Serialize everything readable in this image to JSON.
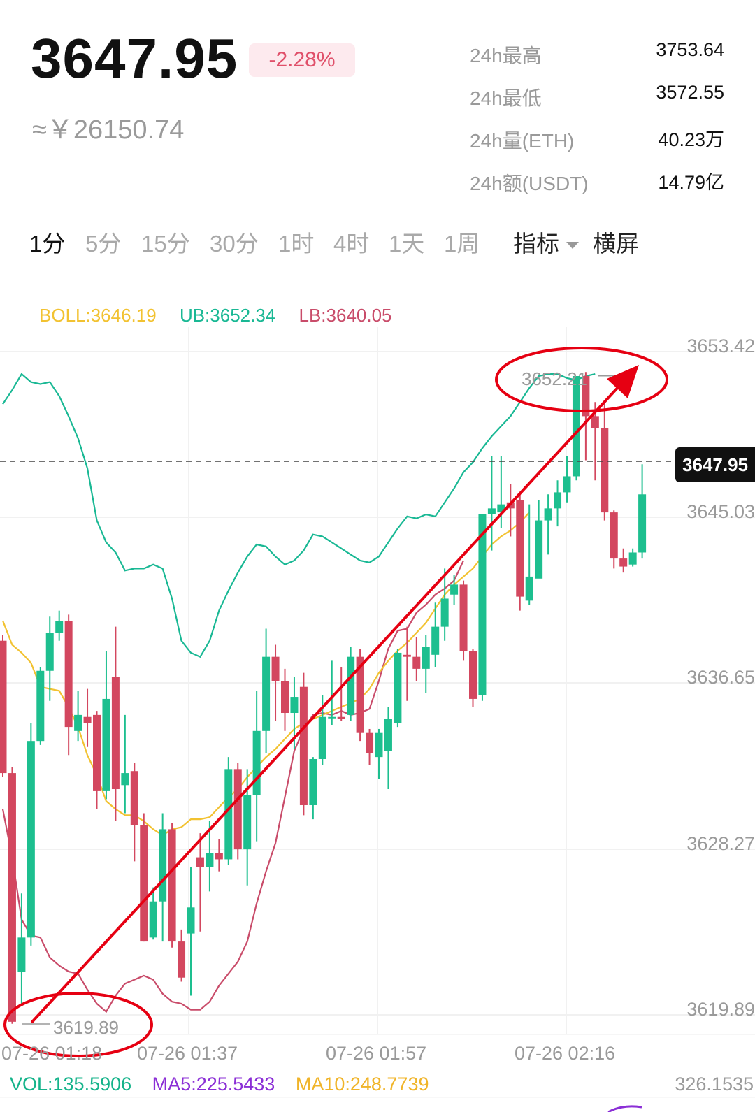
{
  "ticker": {
    "price": "3647.95",
    "change": "-2.28%",
    "cny": "≈￥26150.74"
  },
  "stats": [
    {
      "label": "24h最高",
      "value": "3753.64"
    },
    {
      "label": "24h最低",
      "value": "3572.55"
    },
    {
      "label": "24h量(ETH)",
      "value": "40.23万"
    },
    {
      "label": "24h额(USDT)",
      "value": "14.79亿"
    }
  ],
  "tabs": {
    "intervals": [
      "1分",
      "5分",
      "15分",
      "30分",
      "1时",
      "4时",
      "1天",
      "1周"
    ],
    "active": "1分",
    "indicator": "指标",
    "landscape": "横屏"
  },
  "boll": {
    "boll": "BOLL:3646.19",
    "ub": "UB:3652.34",
    "lb": "LB:3640.05"
  },
  "colors": {
    "up": "#1dbf8f",
    "down": "#d3475f",
    "ub": "#19b894",
    "mid": "#f2c231",
    "lb": "#c94c6a",
    "annotation": "#e60012",
    "vol": "#14b38a",
    "ma5": "#8b2fd6",
    "ma10": "#f0b429"
  },
  "chart_data": {
    "type": "candlestick",
    "title": "",
    "y_axis_labels": [
      "3653.42",
      "3645.03",
      "3636.65",
      "3628.27",
      "3619.89"
    ],
    "ylim": [
      3619.89,
      3653.42
    ],
    "x_axis_labels": [
      "07-26 01:18",
      "07-26 01:37",
      "07-26 01:57",
      "07-26 02:16"
    ],
    "current_price": "3647.95",
    "high_marker": "3652.21",
    "low_marker": "3619.89",
    "candles": [
      [
        3639.0,
        3632.4,
        3639.3,
        3632.2
      ],
      [
        3632.4,
        3620.0,
        3632.7,
        3619.9
      ],
      [
        3622.5,
        3624.2,
        3626.4,
        3620.9
      ],
      [
        3624.2,
        3634.0,
        3634.9,
        3623.8
      ],
      [
        3634.0,
        3637.5,
        3637.7,
        3633.8
      ],
      [
        3637.5,
        3639.4,
        3640.2,
        3636.0
      ],
      [
        3639.4,
        3640.0,
        3640.5,
        3639.0
      ],
      [
        3640.0,
        3634.7,
        3640.3,
        3633.3
      ],
      [
        3634.5,
        3635.3,
        3636.5,
        3634.0
      ],
      [
        3635.2,
        3634.9,
        3636.6,
        3633.7
      ],
      [
        3635.3,
        3631.5,
        3635.5,
        3630.6
      ],
      [
        3631.5,
        3636.1,
        3638.5,
        3631.1
      ],
      [
        3637.2,
        3631.6,
        3639.7,
        3630.0
      ],
      [
        3631.8,
        3632.4,
        3635.3,
        3630.4
      ],
      [
        3632.5,
        3629.8,
        3632.9,
        3628.0
      ],
      [
        3629.8,
        3624.0,
        3630.4,
        3624.0
      ],
      [
        3624.2,
        3626.0,
        3626.7,
        3624.1
      ],
      [
        3626.0,
        3629.6,
        3630.4,
        3624.0
      ],
      [
        3629.6,
        3624.0,
        3629.9,
        3623.7
      ],
      [
        3624.0,
        3622.2,
        3624.6,
        3622.0
      ],
      [
        3624.4,
        3625.7,
        3627.7,
        3621.3
      ],
      [
        3628.2,
        3627.7,
        3629.4,
        3624.5
      ],
      [
        3627.7,
        3628.4,
        3630.0,
        3626.5
      ],
      [
        3628.4,
        3628.1,
        3629.1,
        3627.5
      ],
      [
        3628.1,
        3632.6,
        3633.2,
        3627.8
      ],
      [
        3632.6,
        3628.6,
        3632.9,
        3628.1
      ],
      [
        3628.6,
        3631.3,
        3632.6,
        3626.8
      ],
      [
        3631.3,
        3634.5,
        3636.5,
        3629.0
      ],
      [
        3634.5,
        3638.2,
        3639.6,
        3633.4
      ],
      [
        3638.2,
        3637.0,
        3638.8,
        3635.0
      ],
      [
        3637.0,
        3635.4,
        3637.6,
        3634.5
      ],
      [
        3635.4,
        3636.2,
        3637.2,
        3633.6
      ],
      [
        3636.7,
        3630.8,
        3637.4,
        3630.3
      ],
      [
        3630.8,
        3633.1,
        3633.2,
        3630.1
      ],
      [
        3633.1,
        3635.2,
        3636.3,
        3632.8
      ],
      [
        3635.2,
        3635.2,
        3638.0,
        3634.8
      ],
      [
        3635.2,
        3635.1,
        3637.7,
        3635.0
      ],
      [
        3635.3,
        3638.2,
        3638.7,
        3635.0
      ],
      [
        3638.2,
        3634.4,
        3638.6,
        3634.0
      ],
      [
        3634.4,
        3633.4,
        3634.6,
        3632.8
      ],
      [
        3633.2,
        3634.4,
        3634.6,
        3632.1
      ],
      [
        3633.5,
        3635.1,
        3635.7,
        3631.6
      ],
      [
        3634.9,
        3638.4,
        3638.6,
        3634.7
      ],
      [
        3638.3,
        3638.2,
        3639.7,
        3636.0
      ],
      [
        3638.2,
        3637.6,
        3639.2,
        3637.0
      ],
      [
        3637.6,
        3638.7,
        3639.3,
        3636.4
      ],
      [
        3638.3,
        3639.7,
        3640.9,
        3637.7
      ],
      [
        3639.7,
        3641.1,
        3642.6,
        3639.0
      ],
      [
        3641.3,
        3641.8,
        3642.3,
        3640.8
      ],
      [
        3641.8,
        3638.5,
        3642.0,
        3638.0
      ],
      [
        3638.5,
        3636.1,
        3638.6,
        3635.7
      ],
      [
        3636.3,
        3645.3,
        3645.3,
        3636.0
      ],
      [
        3645.3,
        3645.6,
        3648.2,
        3643.5
      ],
      [
        3645.4,
        3645.8,
        3648.2,
        3644.6
      ],
      [
        3645.9,
        3645.6,
        3646.8,
        3644.2
      ],
      [
        3646.0,
        3641.2,
        3646.4,
        3640.5
      ],
      [
        3641.0,
        3642.2,
        3645.8,
        3640.8
      ],
      [
        3642.1,
        3645.0,
        3646.0,
        3643.5
      ],
      [
        3645.0,
        3645.6,
        3646.3,
        3643.3
      ],
      [
        3645.6,
        3646.4,
        3647.0,
        3644.7
      ],
      [
        3646.4,
        3647.2,
        3648.2,
        3645.9
      ],
      [
        3647.2,
        3652.2,
        3652.2,
        3647.0
      ],
      [
        3652.2,
        3650.2,
        3652.4,
        3648.0
      ],
      [
        3650.2,
        3649.6,
        3650.9,
        3647.0
      ],
      [
        3649.6,
        3645.4,
        3650.9,
        3645.0
      ],
      [
        3645.4,
        3643.1,
        3645.5,
        3642.6
      ],
      [
        3643.1,
        3642.7,
        3643.6,
        3642.4
      ],
      [
        3642.8,
        3643.4,
        3643.6,
        3642.7
      ],
      [
        3643.4,
        3646.3,
        3647.8,
        3643.1
      ]
    ],
    "ub": [
      3650.8,
      3651.5,
      3652.3,
      3651.9,
      3651.8,
      3651.9,
      3651.2,
      3650.2,
      3649.1,
      3647.6,
      3645.0,
      3643.9,
      3643.4,
      3642.5,
      3642.6,
      3642.6,
      3642.8,
      3642.6,
      3641.1,
      3639.0,
      3638.4,
      3638.2,
      3639.0,
      3640.5,
      3641.5,
      3642.4,
      3643.2,
      3643.8,
      3643.7,
      3643.2,
      3642.8,
      3643.0,
      3643.5,
      3644.3,
      3644.2,
      3643.9,
      3643.6,
      3643.3,
      3643.0,
      3642.9,
      3643.2,
      3643.9,
      3644.6,
      3645.2,
      3645.1,
      3645.3,
      3645.2,
      3645.9,
      3646.6,
      3647.4,
      3647.9,
      3648.6,
      3649.2,
      3649.7,
      3650.2,
      3650.9,
      3651.6,
      3652.2,
      3652.3,
      3652.3,
      3652.1,
      3652.0,
      3652.2,
      3652.3
    ],
    "mid": [
      3640.0,
      3638.8,
      3638.4,
      3637.9,
      3636.7,
      3636.6,
      3636.5,
      3635.7,
      3634.7,
      3633.3,
      3632.3,
      3631.0,
      3630.6,
      3630.3,
      3630.3,
      3630.0,
      3629.6,
      3629.3,
      3629.6,
      3629.7,
      3630.1,
      3630.1,
      3630.2,
      3630.7,
      3631.2,
      3631.6,
      3632.2,
      3632.7,
      3633.2,
      3633.6,
      3634.1,
      3634.6,
      3634.9,
      3635.1,
      3635.3,
      3635.5,
      3635.7,
      3635.9,
      3636.1,
      3636.6,
      3637.4,
      3638.0,
      3638.5,
      3638.9,
      3639.4,
      3639.9,
      3640.6,
      3641.3,
      3641.8,
      3642.2,
      3642.6,
      3643.2,
      3643.8,
      3644.2,
      3644.5,
      3644.9,
      3645.4
    ],
    "lb": [
      3630.6,
      3628.2,
      3625.1,
      3624.3,
      3624.2,
      3623.2,
      3622.8,
      3622.5,
      3622.4,
      3621.6,
      3620.9,
      3620.5,
      3621.3,
      3621.9,
      3622.1,
      3622.3,
      3622.1,
      3621.4,
      3621.0,
      3620.9,
      3620.6,
      3620.6,
      3621.0,
      3621.8,
      3622.4,
      3623.0,
      3624.0,
      3625.9,
      3627.5,
      3628.9,
      3631.2,
      3633.5,
      3634.6,
      3635.3,
      3635.4,
      3635.3,
      3635.5,
      3635.3,
      3635.4,
      3635.6,
      3637.0,
      3638.6,
      3639.5,
      3639.6,
      3640.4,
      3640.8,
      3641.3,
      3641.6,
      3642.0,
      3643.0
    ],
    "volume": {
      "vol": "VOL:135.5906",
      "ma5": "MA5:225.5433",
      "ma10": "MA10:248.7739",
      "axis_max": "326.1535"
    }
  }
}
